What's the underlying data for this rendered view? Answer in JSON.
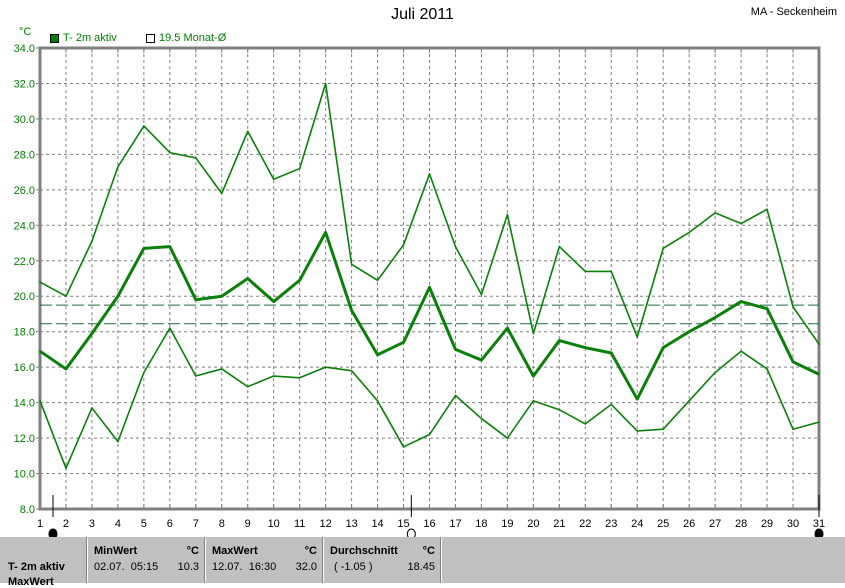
{
  "header": {
    "title": "Juli 2011",
    "station": "MA - Seckenheim",
    "unit": "°C"
  },
  "legend": [
    {
      "label": "T- 2m aktiv",
      "color": "#008000",
      "filled": true
    },
    {
      "label": "19.5 Monat-Ø",
      "color": "#008000",
      "filled": false
    }
  ],
  "colors": {
    "series": "#0a800a",
    "reference": "#1f6b3f",
    "grid": "#808080",
    "axis_text": "#008000"
  },
  "chart_data": {
    "type": "line",
    "title": "Juli 2011",
    "ylabel": "°C",
    "ylim": [
      8.0,
      34.0
    ],
    "y_ticks": [
      "8.0",
      "10.0",
      "12.0",
      "14.0",
      "16.0",
      "18.0",
      "20.0",
      "22.0",
      "24.0",
      "26.0",
      "28.0",
      "30.0",
      "32.0",
      "34.0"
    ],
    "x": [
      1,
      2,
      3,
      4,
      5,
      6,
      7,
      8,
      9,
      10,
      11,
      12,
      13,
      14,
      15,
      16,
      17,
      18,
      19,
      20,
      21,
      22,
      23,
      24,
      25,
      26,
      27,
      28,
      29,
      30,
      31
    ],
    "grid": true,
    "series": [
      {
        "role": "max",
        "values": [
          20.8,
          20.0,
          23.1,
          27.3,
          29.6,
          28.1,
          27.8,
          25.8,
          29.3,
          26.6,
          27.2,
          32.0,
          21.8,
          20.9,
          22.9,
          26.9,
          22.8,
          20.1,
          24.6,
          17.9,
          22.8,
          21.4,
          21.4,
          17.7,
          22.7,
          23.6,
          24.7,
          24.1,
          24.9,
          19.4,
          17.3
        ]
      },
      {
        "role": "mean",
        "values": [
          16.9,
          15.9,
          17.9,
          20.0,
          22.7,
          22.8,
          19.8,
          20.0,
          21.0,
          19.7,
          20.9,
          23.6,
          19.2,
          16.7,
          17.4,
          20.5,
          17.0,
          16.4,
          18.2,
          15.5,
          17.5,
          17.1,
          16.8,
          14.2,
          17.1,
          18.0,
          18.8,
          19.7,
          19.3,
          16.3,
          15.6
        ]
      },
      {
        "role": "min",
        "values": [
          14.1,
          10.3,
          13.7,
          11.8,
          15.7,
          18.2,
          15.5,
          15.9,
          14.9,
          15.5,
          15.4,
          16.0,
          15.8,
          14.1,
          11.5,
          12.2,
          14.4,
          13.1,
          12.0,
          14.1,
          13.6,
          12.8,
          13.9,
          12.4,
          12.5,
          14.1,
          15.7,
          16.9,
          15.9,
          12.5,
          12.9
        ]
      }
    ],
    "reference_lines": [
      19.5,
      18.45
    ],
    "moon_phases": [
      {
        "day": 1.5,
        "phase": "new"
      },
      {
        "day": 15.3,
        "phase": "full"
      },
      {
        "day": 31,
        "phase": "new"
      }
    ]
  },
  "stats": {
    "row_label": "T- 2m aktiv",
    "row2_label": "MaxWert",
    "min": {
      "header": "MinWert",
      "unit": "°C",
      "date": "02.07.  05:15",
      "value": "10.3"
    },
    "max": {
      "header": "MaxWert",
      "unit": "°C",
      "date": "12.07.  16:30",
      "value": "32.0"
    },
    "avg": {
      "header": "Durchschnitt",
      "unit": "°C",
      "delta": "( -1.05 )",
      "value": "18.45"
    }
  }
}
